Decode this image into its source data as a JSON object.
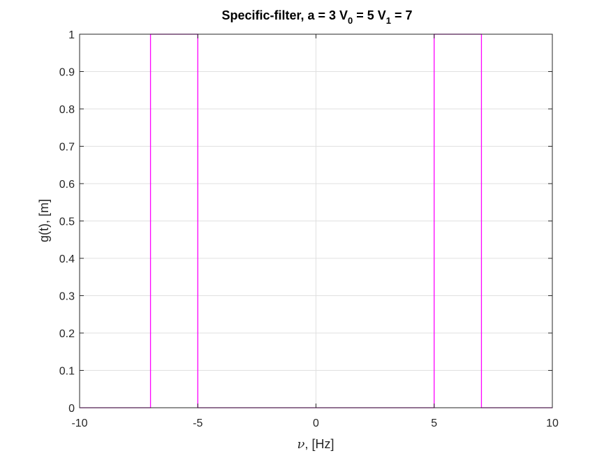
{
  "chart_data": {
    "type": "line",
    "title": {
      "prefix": "Specific-filter, a = 3 V",
      "sub0": "0",
      "middle": " = 5 V",
      "sub1": "1",
      "suffix": " = 7"
    },
    "xlabel": {
      "symbol": "ν",
      "text": ", [Hz]"
    },
    "ylabel": "g(t), [m]",
    "xlim": [
      -10,
      10
    ],
    "ylim": [
      0,
      1
    ],
    "xticks": [
      -10,
      -5,
      0,
      5,
      10
    ],
    "xtick_labels": [
      "-10",
      "-5",
      "0",
      "5",
      "10"
    ],
    "yticks": [
      0,
      0.1,
      0.2,
      0.3,
      0.4,
      0.5,
      0.6,
      0.7,
      0.8,
      0.9,
      1
    ],
    "ytick_labels": [
      "0",
      "0.1",
      "0.2",
      "0.3",
      "0.4",
      "0.5",
      "0.6",
      "0.7",
      "0.8",
      "0.9",
      "1"
    ],
    "grid": true,
    "series": [
      {
        "color": "#ff00ff",
        "x": [
          -10,
          -7,
          -7,
          -5,
          -5,
          5,
          5,
          7,
          7,
          10
        ],
        "y": [
          0,
          0,
          1,
          1,
          0,
          0,
          1,
          1,
          0,
          0
        ]
      }
    ],
    "colors": {
      "axes": "#262626",
      "grid": "#e0e0e0",
      "background": "#ffffff"
    }
  }
}
